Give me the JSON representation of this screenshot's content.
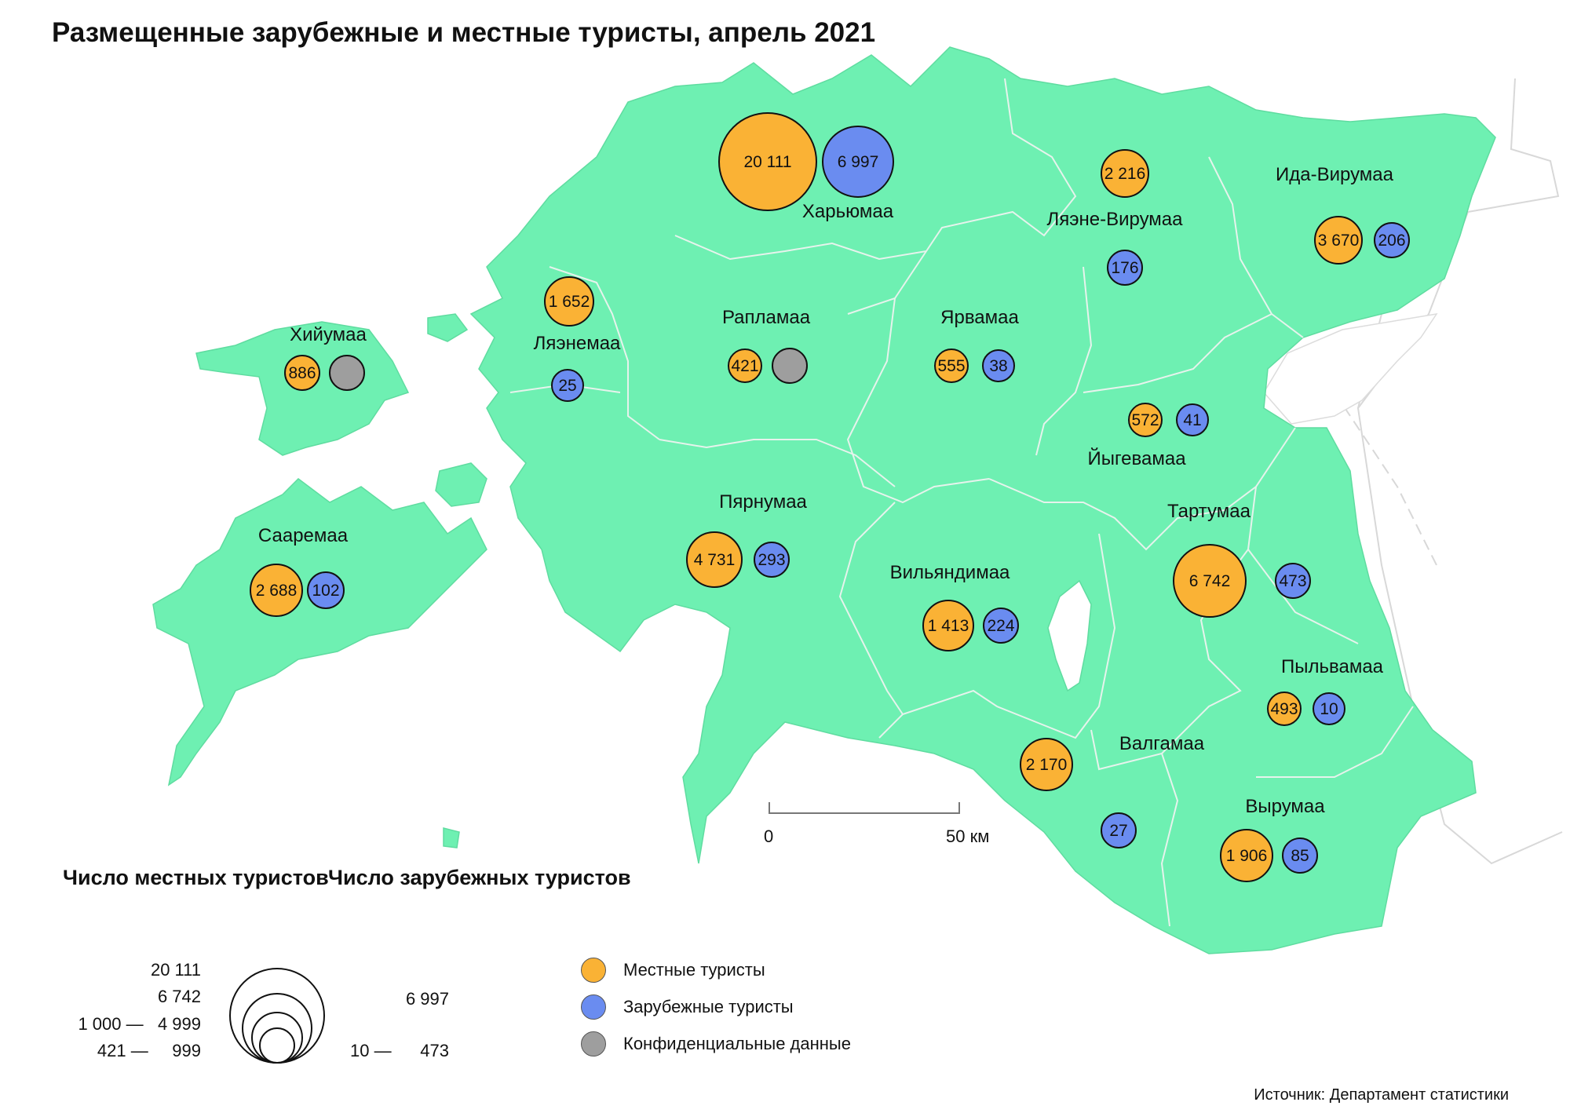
{
  "title": "Размещенные зарубежные и местные туристы, апрель 2021",
  "colors": {
    "local": "#FAB235",
    "foreign": "#6A8CF0",
    "confidential": "#9E9E9E",
    "land": "#6EF0B2",
    "border": "#E6F3EC"
  },
  "counties": [
    {
      "name": "Харьюмаа",
      "local": "20 111",
      "foreign": "6 997"
    },
    {
      "name": "Ляэне-Вирумаа",
      "local": "2 216",
      "foreign": "176"
    },
    {
      "name": "Ида-Вирумаа",
      "local": "3 670",
      "foreign": "206"
    },
    {
      "name": "Хийумаа",
      "local": "886",
      "foreign": ""
    },
    {
      "name": "Ляэнемаа",
      "local": "1 652",
      "foreign": "25"
    },
    {
      "name": "Рапламаа",
      "local": "421",
      "foreign": ""
    },
    {
      "name": "Ярвамаа",
      "local": "555",
      "foreign": "38"
    },
    {
      "name": "Йыгевамаа",
      "local": "572",
      "foreign": "41"
    },
    {
      "name": "Сааремаа",
      "local": "2 688",
      "foreign": "102"
    },
    {
      "name": "Пярнумаа",
      "local": "4 731",
      "foreign": "293"
    },
    {
      "name": "Вильяндимаа",
      "local": "1 413",
      "foreign": "224"
    },
    {
      "name": "Тартумаа",
      "local": "6 742",
      "foreign": "473"
    },
    {
      "name": "Пыльвамаа",
      "local": "493",
      "foreign": "10"
    },
    {
      "name": "Валгамаа",
      "local": "2 170",
      "foreign": "27"
    },
    {
      "name": "Вырумаа",
      "local": "1 906",
      "foreign": "85"
    }
  ],
  "scale_bar": {
    "start": "0",
    "end": "50 км"
  },
  "legend": {
    "local_heading": "Число местных туристов",
    "foreign_heading": "Число зарубежных туристов",
    "local_levels": [
      "20 111",
      "6 742",
      "1 000 —   4 999",
      "421 —     999"
    ],
    "foreign_levels": [
      "6 997",
      "10 —      473"
    ]
  },
  "key": {
    "local": "Местные туристы",
    "foreign": "Зарубежные туристы",
    "confidential": "Конфиденциальные данные"
  },
  "source": "Источник: Департамент статистики"
}
